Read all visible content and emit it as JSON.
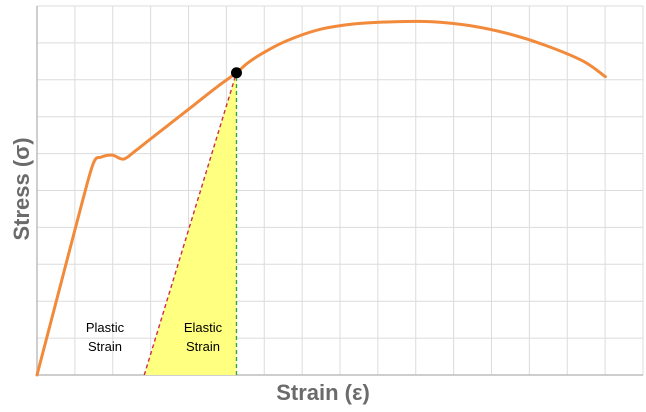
{
  "chart_data": {
    "type": "line",
    "title": "",
    "xlabel": "Strain (ε)",
    "ylabel": "Stress (σ)",
    "xlim": [
      0,
      16.1
    ],
    "ylim": [
      0,
      9.4
    ],
    "grid": true,
    "ticks": false,
    "series": [
      {
        "color": "#f28a3c",
        "points": [
          [
            0,
            0
          ],
          [
            0.6,
            2.2
          ],
          [
            1.2,
            4.4
          ],
          [
            1.5,
            5.4
          ],
          [
            1.7,
            5.55
          ],
          [
            2.0,
            5.6
          ],
          [
            2.3,
            5.5
          ],
          [
            2.6,
            5.7
          ],
          [
            3.0,
            6.0
          ],
          [
            3.6,
            6.45
          ],
          [
            4.2,
            6.9
          ],
          [
            4.8,
            7.35
          ],
          [
            5.3,
            7.7
          ],
          [
            5.6,
            7.95
          ],
          [
            6.0,
            8.2
          ],
          [
            6.6,
            8.5
          ],
          [
            7.5,
            8.8
          ],
          [
            8.5,
            8.95
          ],
          [
            9.5,
            9.0
          ],
          [
            10.5,
            9.0
          ],
          [
            11.5,
            8.9
          ],
          [
            12.5,
            8.7
          ],
          [
            13.5,
            8.4
          ],
          [
            14.5,
            8.0
          ],
          [
            15.1,
            7.6
          ]
        ]
      }
    ],
    "marker": {
      "x": 5.3,
      "y": 7.7,
      "color": "#000000"
    },
    "unloading_line": {
      "from": [
        2.85,
        0
      ],
      "to": [
        5.3,
        7.7
      ],
      "color": "#cc2b4e"
    },
    "vertical_line": {
      "x": 5.3,
      "from_y": 0,
      "to_y": 7.7,
      "color": "#3aa13a"
    },
    "shaded_region": {
      "color": "#ffff80"
    },
    "annotations": {
      "plastic": {
        "line1": "Plastic",
        "line2": "Strain"
      },
      "elastic": {
        "line1": "Elastic",
        "line2": "Strain"
      }
    }
  }
}
